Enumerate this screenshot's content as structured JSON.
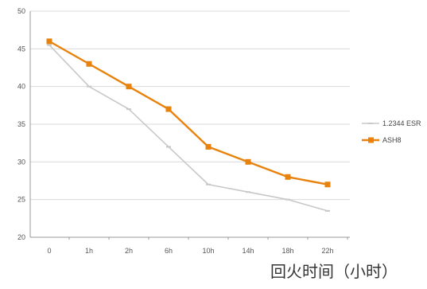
{
  "chart_data": {
    "type": "line",
    "title": "",
    "xlabel": "回火时间（小时）",
    "ylabel": "",
    "categories": [
      "0",
      "1h",
      "2h",
      "6h",
      "10h",
      "14h",
      "18h",
      "22h"
    ],
    "ylim": [
      20,
      50
    ],
    "yticks": [
      20,
      25,
      30,
      35,
      40,
      45,
      50
    ],
    "grid": true,
    "legend_position": "right",
    "series": [
      {
        "name": "1.2344 ESR",
        "color": "#c8c8c8",
        "marker": "dash",
        "values": [
          45.5,
          40,
          37,
          32,
          27,
          26,
          25,
          23.5
        ]
      },
      {
        "name": "ASH8",
        "color": "#e8820c",
        "marker": "square",
        "values": [
          46,
          43,
          40,
          37,
          32,
          30,
          28,
          27
        ]
      }
    ]
  }
}
